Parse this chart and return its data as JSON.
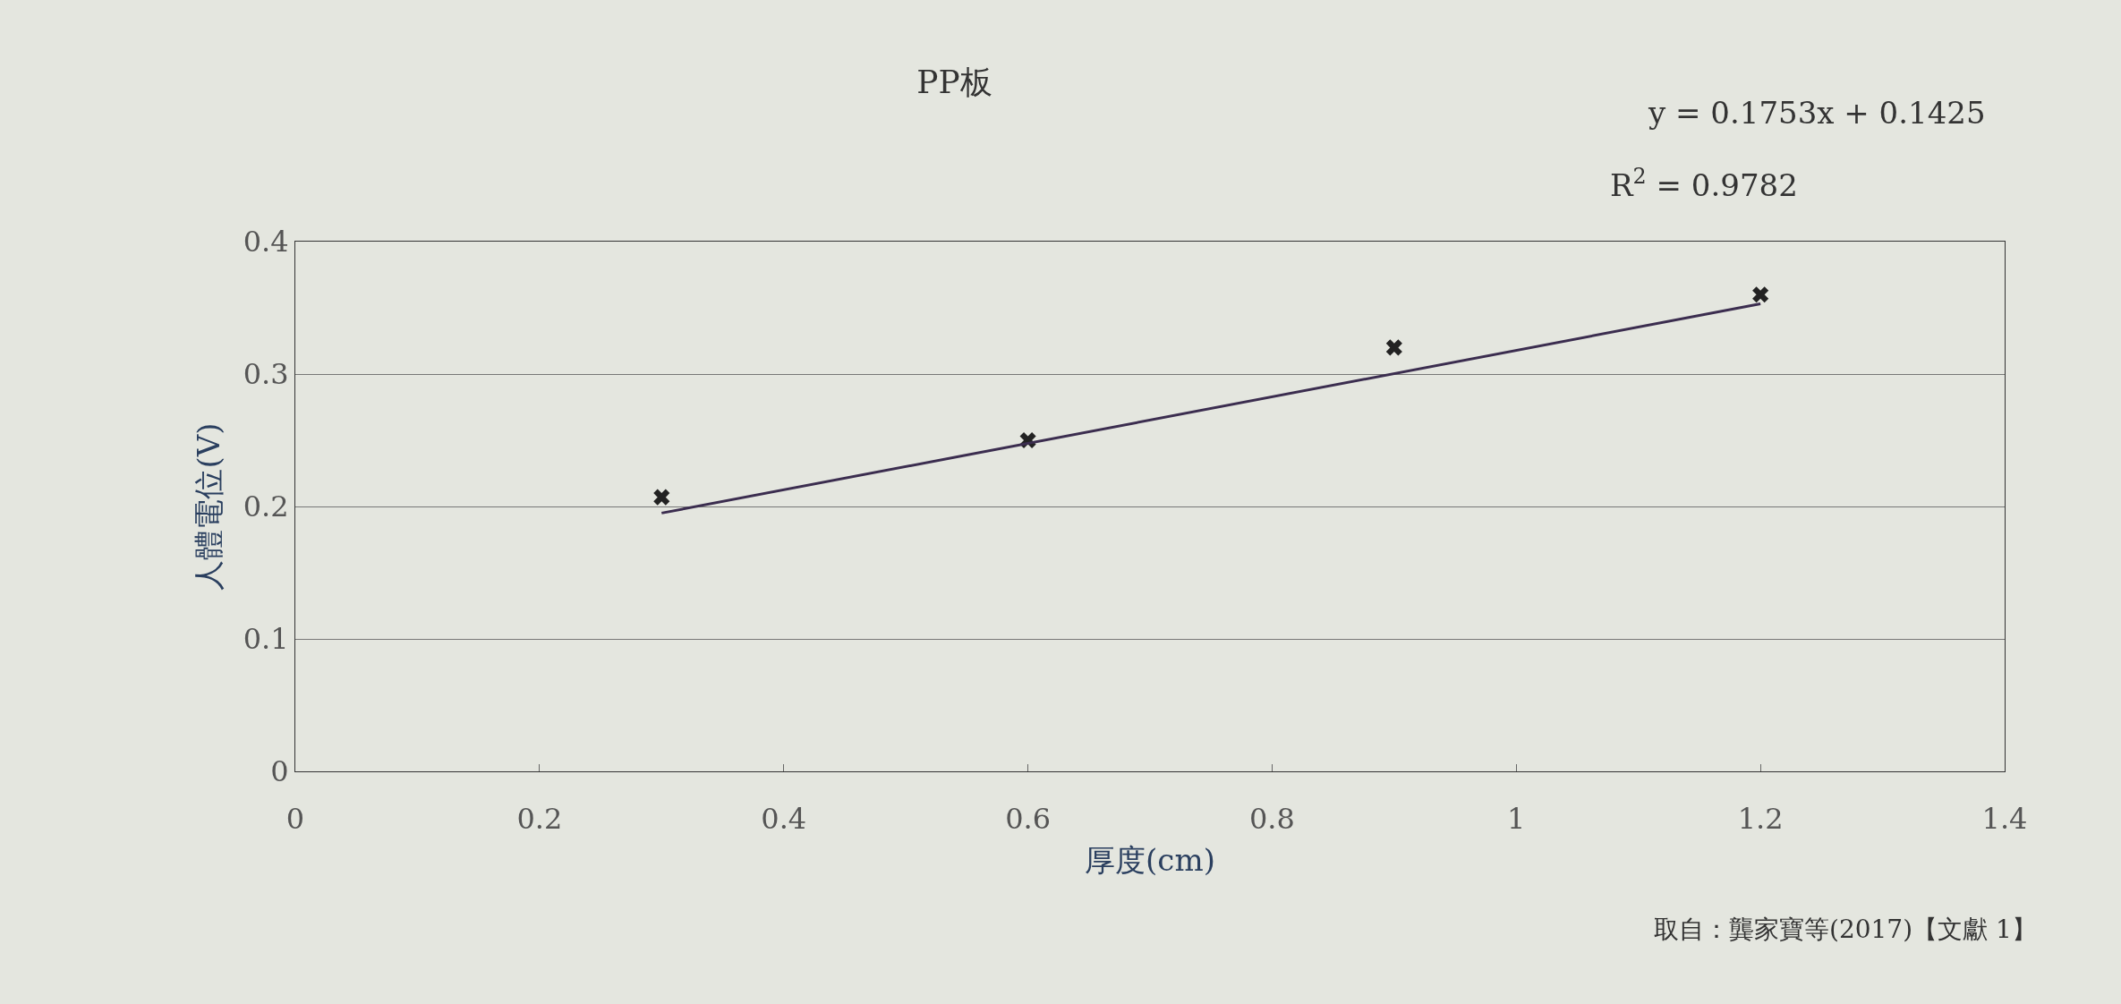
{
  "chart_data": {
    "type": "scatter",
    "title": "PP板",
    "xlabel": "厚度(cm)",
    "ylabel": "人體電位(V)",
    "x": [
      0.3,
      0.6,
      0.9,
      1.2
    ],
    "series": [
      {
        "color": "#222222",
        "values": [
          0.207,
          0.25,
          0.32,
          0.36
        ],
        "marker": "cross"
      },
      {
        "type": "line",
        "color": "#3b2d4f",
        "x": [
          0.3,
          1.2
        ],
        "values": [
          0.195,
          0.353
        ],
        "marker": "none"
      }
    ],
    "xlim": [
      0,
      1.4
    ],
    "xticks": [
      0,
      0.2,
      0.4,
      0.6,
      0.8,
      1,
      1.2,
      1.4
    ],
    "ylim": [
      0,
      0.4
    ],
    "yticks": [
      0,
      0.1,
      0.2,
      0.3,
      0.4
    ],
    "grid": "y",
    "annotations": [
      "y = 0.1753x + 0.1425",
      "R$^{2}$ = 0.9782",
      "取自：龔家寶等(2017)【文獻 1】"
    ]
  }
}
